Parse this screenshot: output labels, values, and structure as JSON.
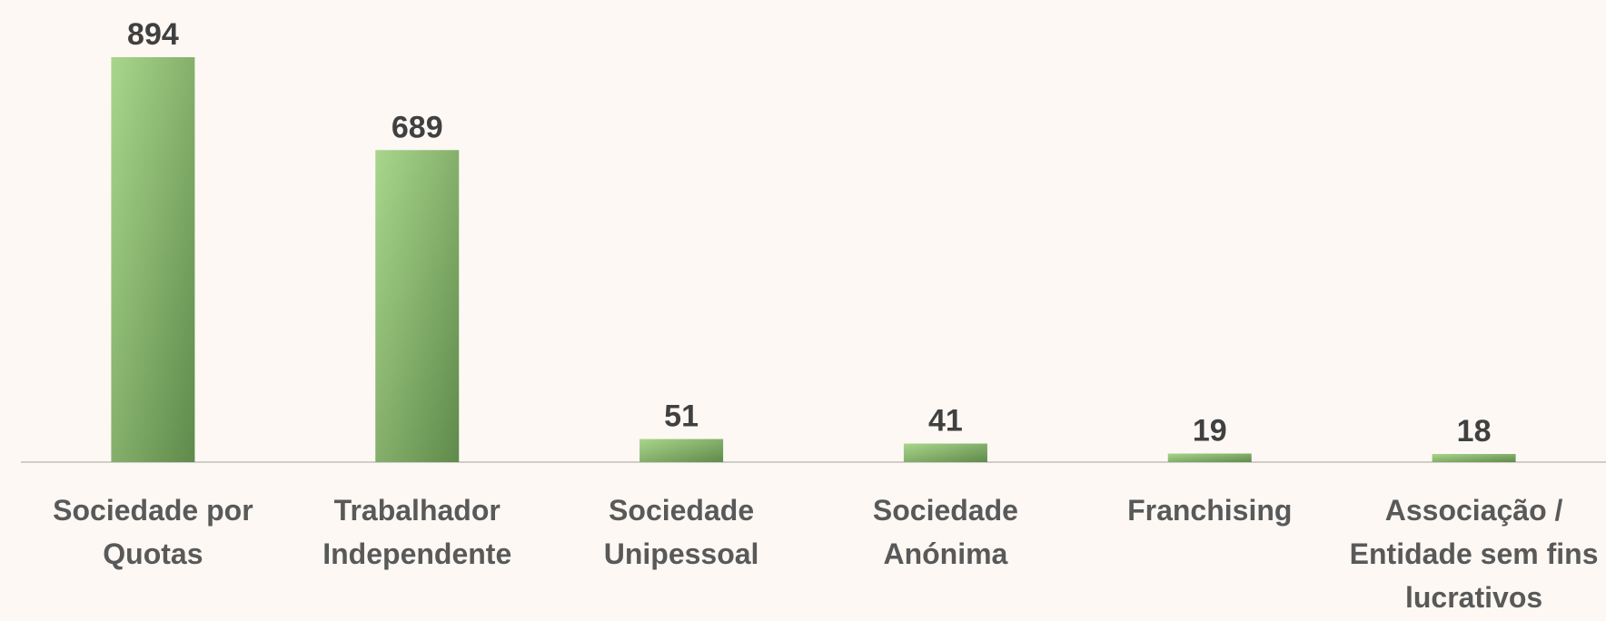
{
  "chart_data": {
    "type": "bar",
    "categories": [
      "Sociedade por Quotas",
      "Trabalhador Independente",
      "Sociedade Unipessoal",
      "Sociedade Anónima",
      "Franchising",
      "Associação / Entidade sem fins lucrativos"
    ],
    "values": [
      894,
      689,
      51,
      41,
      19,
      18
    ],
    "color": "#8fbf72"
  }
}
